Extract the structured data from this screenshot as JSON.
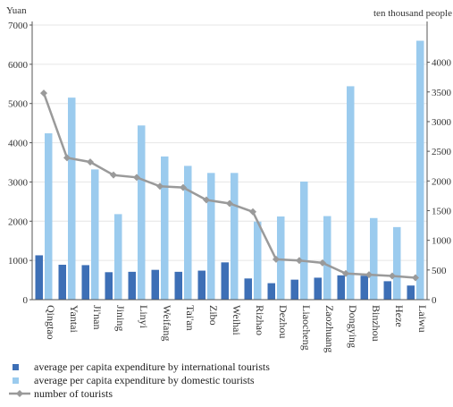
{
  "chart_data": {
    "type": "bar",
    "left_unit": "Yuan",
    "right_unit": "ten thousand people",
    "categories": [
      "Qingtao",
      "Yantai",
      "Ji'nan",
      "Jining",
      "Linyi",
      "Weifang",
      "Tai'an",
      "Zibo",
      "Weihai",
      "Rizhao",
      "Dezhou",
      "Liaocheng",
      "Zaozhuang",
      "Dongying",
      "Binzhou",
      "Heze",
      "Laiwu"
    ],
    "highlight_category": "Jining",
    "highlight_color": "#d9304a",
    "left_ticks": [
      0,
      1000,
      2000,
      3000,
      4000,
      5000,
      6000,
      7000
    ],
    "right_ticks": [
      0,
      500,
      1000,
      1500,
      2000,
      2500,
      3000,
      3500,
      4000
    ],
    "ylim_left": [
      0,
      7000
    ],
    "ylim_right": [
      0,
      4627
    ],
    "series": [
      {
        "name": "average per capita expenditure by international tourists",
        "axis": "left",
        "kind": "bar",
        "color": "#3d6fb6",
        "values": [
          1130,
          890,
          880,
          700,
          710,
          760,
          710,
          740,
          950,
          540,
          420,
          510,
          560,
          620,
          610,
          470,
          360
        ]
      },
      {
        "name": "average per capita expenditure by domestic tourists",
        "axis": "left",
        "kind": "bar",
        "color": "#9bcbee",
        "values": [
          4240,
          5150,
          3320,
          2180,
          4440,
          3650,
          3410,
          3230,
          3230,
          1990,
          2120,
          3010,
          2130,
          5440,
          2080,
          1850,
          6600
        ]
      },
      {
        "name": "number of tourists",
        "axis": "right",
        "kind": "line",
        "color": "#9a9a9a",
        "values": [
          3480,
          2390,
          2320,
          2100,
          2060,
          1910,
          1890,
          1680,
          1620,
          1480,
          680,
          660,
          620,
          440,
          420,
          400,
          370
        ]
      }
    ]
  }
}
